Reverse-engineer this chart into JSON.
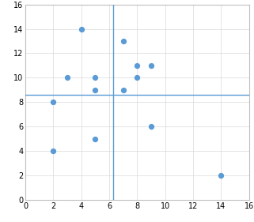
{
  "points": [
    [
      2,
      8
    ],
    [
      2,
      4
    ],
    [
      3,
      10
    ],
    [
      4,
      14
    ],
    [
      5,
      10
    ],
    [
      5,
      9
    ],
    [
      5,
      5
    ],
    [
      7,
      13
    ],
    [
      7,
      9
    ],
    [
      8,
      11
    ],
    [
      8,
      10
    ],
    [
      9,
      11
    ],
    [
      9,
      6
    ],
    [
      14,
      2
    ]
  ],
  "vline_x": 6.3,
  "hline_y": 8.6,
  "xlim": [
    0,
    16
  ],
  "ylim": [
    0,
    16
  ],
  "xticks": [
    0,
    2,
    4,
    6,
    8,
    10,
    12,
    14,
    16
  ],
  "yticks": [
    0,
    2,
    4,
    6,
    8,
    10,
    12,
    14,
    16
  ],
  "dot_color": "#5B9BD5",
  "line_color": "#5B9BD5",
  "grid_color": "#D9D9D9",
  "bg_color": "#FFFFFF",
  "dot_size": 18,
  "tick_fontsize": 7,
  "spine_color": "#BFBFBF"
}
